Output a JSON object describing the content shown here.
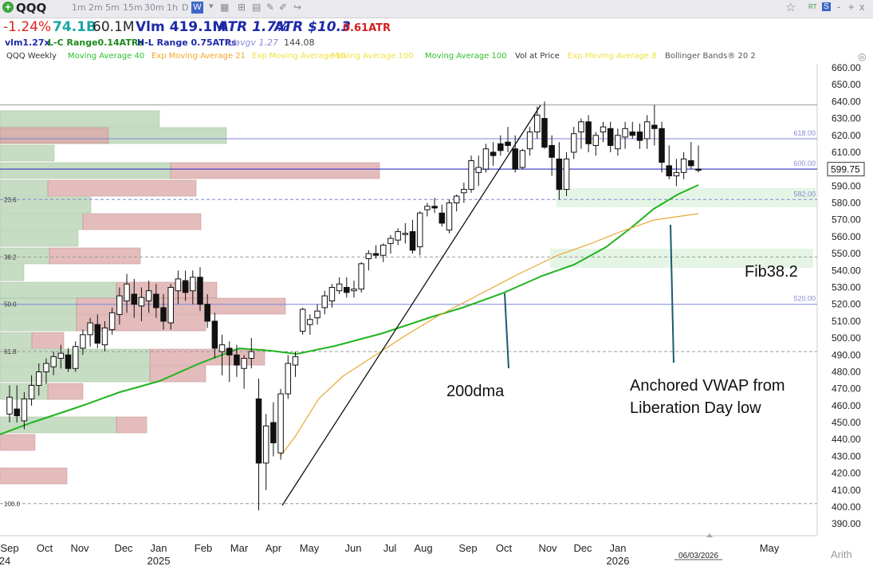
{
  "toolbar": {
    "ticker": "QQQ",
    "intervals": [
      "1m",
      "2m",
      "5m",
      "15m",
      "30m",
      "1h",
      "D",
      "W"
    ],
    "active_interval": "W",
    "star_icon": "star-icon",
    "settings_icon": "gear-icon",
    "window_controls": [
      "RT",
      "S",
      "-",
      "+",
      "x"
    ]
  },
  "stats": {
    "change": "-1.24%",
    "market_cap": "74.1B",
    "avg_volume": "60.1M",
    "volume": "Vlm 419.1M",
    "atr_pct": "ATR 1.7%",
    "atr_dollar": "ATR $10.3",
    "atr_ratio": "0.61ATR",
    "vlm_ratio": "vlm1.27x",
    "lc_range": "L-C Range0.14ATRs",
    "hl_range": "H-L Range 0.75ATRs",
    "vavgv": "v/avgv 1.27",
    "extra": "144.08"
  },
  "indicators": [
    {
      "label": "QQQ Weekly",
      "color": "#333333"
    },
    {
      "label": "Moving Average 40",
      "color": "#2fbf2f"
    },
    {
      "label": "Exp Moving Average 21",
      "color": "#f5a623"
    },
    {
      "label": "Exp Moving Average 10",
      "color": "#f0e040"
    },
    {
      "label": "Moving Average 100",
      "color": "#f0e040"
    },
    {
      "label": "Moving Average 100",
      "color": "#2fbf2f"
    },
    {
      "label": "Vol at Price",
      "color": "#333333"
    },
    {
      "label": "Exp Moving Average 8",
      "color": "#f0e040"
    },
    {
      "label": "Bollinger Bands® 20 2",
      "color": "#555555"
    }
  ],
  "chart_data": {
    "type": "candlestick",
    "ylim": [
      385,
      665
    ],
    "yticks": [
      390,
      400,
      410,
      420,
      430,
      440,
      450,
      460,
      470,
      480,
      490,
      500,
      510,
      520,
      530,
      540,
      550,
      560,
      570,
      580,
      590,
      600,
      610,
      620,
      630,
      640,
      650,
      660
    ],
    "last_price": "599.75",
    "x_months": [
      {
        "label": "Sep",
        "year": "24"
      },
      {
        "label": "Oct"
      },
      {
        "label": "Nov"
      },
      {
        "label": "Dec"
      },
      {
        "label": "Jan",
        "year": "2025"
      },
      {
        "label": "Feb"
      },
      {
        "label": "Mar"
      },
      {
        "label": "Apr"
      },
      {
        "label": "May"
      },
      {
        "label": "Jun"
      },
      {
        "label": "Jul"
      },
      {
        "label": "Aug"
      },
      {
        "label": "Sep"
      },
      {
        "label": "Oct"
      },
      {
        "label": "Nov"
      },
      {
        "label": "Dec"
      },
      {
        "label": "Jan",
        "year": "2026"
      },
      {
        "label": "May"
      }
    ],
    "date_marker": "06/03/2026",
    "scale_label": "Arith",
    "candles": [
      [
        455,
        472,
        450,
        465
      ],
      [
        458,
        472,
        450,
        454
      ],
      [
        451,
        468,
        446,
        464
      ],
      [
        464,
        478,
        460,
        472
      ],
      [
        472,
        485,
        466,
        480
      ],
      [
        480,
        488,
        473,
        485
      ],
      [
        483,
        492,
        478,
        489
      ],
      [
        488,
        496,
        482,
        491
      ],
      [
        490,
        494,
        480,
        482
      ],
      [
        482,
        498,
        480,
        495
      ],
      [
        494,
        505,
        490,
        502
      ],
      [
        502,
        512,
        495,
        509
      ],
      [
        508,
        514,
        494,
        497
      ],
      [
        496,
        510,
        492,
        506
      ],
      [
        505,
        518,
        502,
        515
      ],
      [
        514,
        530,
        508,
        525
      ],
      [
        522,
        538,
        515,
        532
      ],
      [
        526,
        535,
        512,
        520
      ],
      [
        519,
        530,
        510,
        524
      ],
      [
        522,
        534,
        515,
        528
      ],
      [
        526,
        532,
        512,
        518
      ],
      [
        518,
        526,
        505,
        510
      ],
      [
        509,
        532,
        505,
        530
      ],
      [
        528,
        540,
        520,
        535
      ],
      [
        534,
        540,
        522,
        527
      ],
      [
        528,
        540,
        520,
        536
      ],
      [
        536,
        542,
        516,
        520
      ],
      [
        520,
        526,
        506,
        510
      ],
      [
        510,
        515,
        488,
        494
      ],
      [
        492,
        502,
        478,
        496
      ],
      [
        494,
        498,
        474,
        490
      ],
      [
        490,
        496,
        477,
        484
      ],
      [
        482,
        490,
        470,
        488
      ],
      [
        488,
        500,
        482,
        492
      ],
      [
        464,
        476,
        398,
        426
      ],
      [
        426,
        455,
        410,
        448
      ],
      [
        450,
        462,
        430,
        438
      ],
      [
        432,
        470,
        428,
        467
      ],
      [
        467,
        490,
        464,
        485
      ],
      [
        484,
        492,
        477,
        489
      ],
      [
        504,
        518,
        502,
        517
      ],
      [
        508,
        514,
        502,
        511
      ],
      [
        512,
        520,
        508,
        516
      ],
      [
        518,
        528,
        514,
        525
      ],
      [
        522,
        532,
        518,
        530
      ],
      [
        528,
        536,
        526,
        532
      ],
      [
        530,
        536,
        524,
        527
      ],
      [
        528,
        534,
        524,
        529
      ],
      [
        529,
        545,
        527,
        544
      ],
      [
        547,
        552,
        540,
        550
      ],
      [
        550,
        555,
        547,
        549
      ],
      [
        549,
        556,
        545,
        555
      ],
      [
        556,
        561,
        550,
        559
      ],
      [
        558,
        565,
        555,
        563
      ],
      [
        562,
        568,
        556,
        562
      ],
      [
        563,
        570,
        550,
        552
      ],
      [
        554,
        575,
        549,
        574
      ],
      [
        576,
        580,
        572,
        578
      ],
      [
        578,
        583,
        574,
        577
      ],
      [
        574,
        579,
        566,
        568
      ],
      [
        564,
        582,
        562,
        580
      ],
      [
        580,
        585,
        575,
        584
      ],
      [
        586,
        592,
        580,
        588
      ],
      [
        588,
        608,
        586,
        605
      ],
      [
        598,
        608,
        590,
        601
      ],
      [
        600,
        615,
        598,
        612
      ],
      [
        610,
        616,
        602,
        608
      ],
      [
        615,
        620,
        608,
        611
      ],
      [
        616,
        625,
        610,
        614
      ],
      [
        612,
        620,
        598,
        600
      ],
      [
        601,
        612,
        600,
        611
      ],
      [
        612,
        625,
        608,
        622
      ],
      [
        622,
        637,
        618,
        632
      ],
      [
        630,
        640,
        612,
        613
      ],
      [
        614,
        620,
        596,
        607
      ],
      [
        606,
        616,
        582,
        588
      ],
      [
        588,
        610,
        584,
        606
      ],
      [
        610,
        625,
        606,
        621
      ],
      [
        622,
        630,
        612,
        628
      ],
      [
        628,
        632,
        610,
        615
      ],
      [
        614,
        622,
        608,
        620
      ],
      [
        622,
        628,
        616,
        625
      ],
      [
        624,
        628,
        610,
        614
      ],
      [
        612,
        624,
        608,
        620
      ],
      [
        619,
        628,
        612,
        624
      ],
      [
        622,
        628,
        618,
        620
      ],
      [
        622,
        627,
        612,
        617
      ],
      [
        618,
        632,
        612,
        628
      ],
      [
        626,
        638,
        614,
        624
      ],
      [
        624,
        628,
        598,
        604
      ],
      [
        602,
        614,
        594,
        596
      ],
      [
        596,
        606,
        590,
        598
      ],
      [
        598,
        610,
        594,
        606
      ],
      [
        605,
        616,
        600,
        602
      ],
      [
        600,
        614,
        598,
        599.75
      ]
    ],
    "lines": {
      "ma200": {
        "name": "200dma",
        "color": "#1fb41f"
      },
      "vwap": {
        "name": "Anchored VWAP",
        "color": "#e8a838"
      }
    },
    "horizontal_levels": [
      {
        "price": 638,
        "label": "",
        "color": "#999999",
        "dashed": false
      },
      {
        "price": 618,
        "label": "618.00",
        "color": "#7b86d8",
        "dashed": false
      },
      {
        "price": 600,
        "label": "600.00",
        "color": "#4848c8",
        "dashed": false
      },
      {
        "price": 582,
        "label": "582.00",
        "color": "#7b86d8",
        "dashed": true
      },
      {
        "price": 520,
        "label": "520.00",
        "color": "#7b86d8",
        "dashed": false
      },
      {
        "price": 548,
        "label": "",
        "color": "#999999",
        "dashed": true
      },
      {
        "price": 492,
        "label": "",
        "color": "#999999",
        "dashed": true
      },
      {
        "price": 402,
        "label": "",
        "color": "#999999",
        "dashed": true
      }
    ],
    "fib_labels": [
      {
        "price": 582,
        "label": "23.6"
      },
      {
        "price": 548,
        "label": "38.2"
      },
      {
        "price": 520,
        "label": "50.0"
      },
      {
        "price": 492,
        "label": "61.8"
      },
      {
        "price": 402,
        "label": "100.0"
      }
    ],
    "annotations": [
      {
        "text": "200dma"
      },
      {
        "text": "Anchored VWAP from"
      },
      {
        "text": "Liberation Day low"
      },
      {
        "text": "Fib38.2"
      }
    ]
  }
}
